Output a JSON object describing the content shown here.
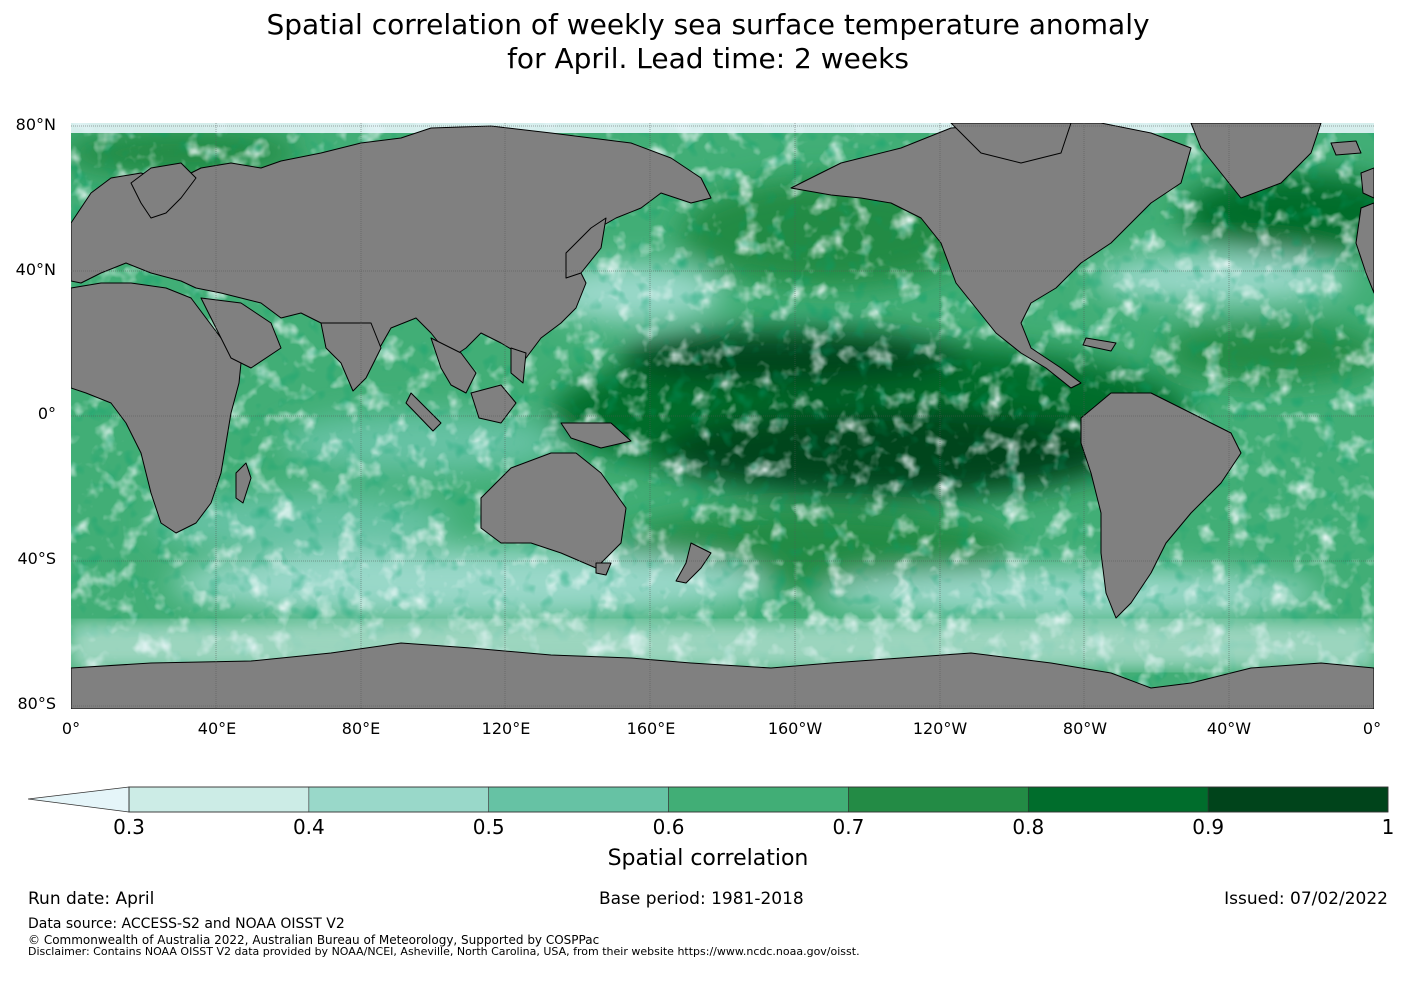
{
  "title": {
    "line1": "Spatial correlation of weekly sea surface temperature anomaly",
    "line2": "for April. Lead time: 2 weeks"
  },
  "lat_labels": [
    "80°N",
    "40°N",
    "0°",
    "40°S",
    "80°S"
  ],
  "lon_labels": [
    "0°",
    "40°E",
    "80°E",
    "120°E",
    "160°E",
    "160°W",
    "120°W",
    "80°W",
    "40°W",
    "0°"
  ],
  "colorbar": {
    "ticks": [
      "0.3",
      "0.4",
      "0.5",
      "0.6",
      "0.7",
      "0.8",
      "0.9",
      "1"
    ],
    "colors": [
      "#e5f5f9",
      "#ccece6",
      "#99d8c9",
      "#66c2a4",
      "#41ae76",
      "#238b45",
      "#006d2c",
      "#00441b"
    ],
    "label": "Spatial correlation"
  },
  "footer": {
    "run_date": "Run date: April",
    "base_period": "Base period: 1981-2018",
    "issued": "Issued: 07/02/2022",
    "data_source": "Data source: ACCESS-S2 and NOAA OISST V2",
    "copyright": "© Commonwealth of Australia 2022, Australian Bureau of Meteorology, Supported by COSPPac",
    "disclaimer": "Disclaimer: Contains NOAA OISST V2 data provided by NOAA/NCEI, Asheville, North Carolina, USA, from their website https://www.ncdc.noaa.gov/oisst."
  },
  "map": {
    "land_color": "#808080",
    "ocean_base_color": "#41ae76"
  }
}
